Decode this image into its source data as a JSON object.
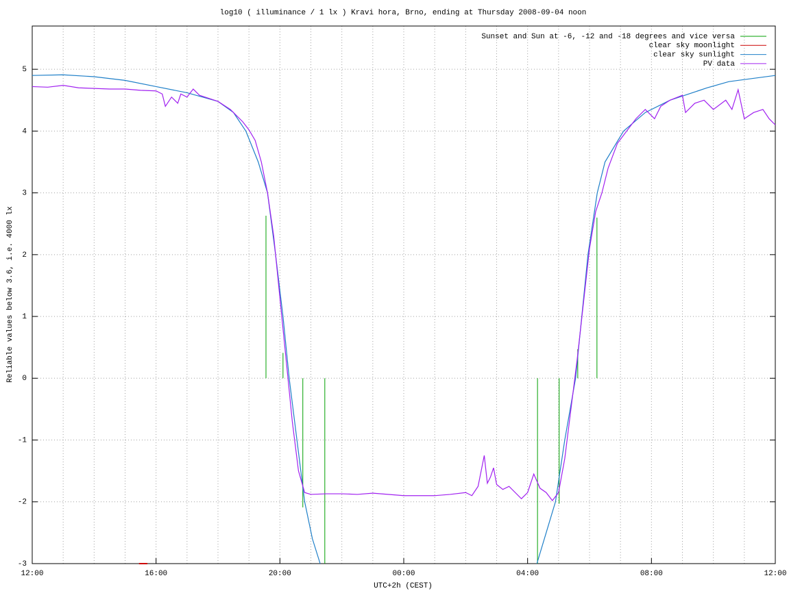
{
  "chart_data": {
    "type": "line",
    "title": "log10 ( illuminance / 1 lx ) Kravi hora, Brno, ending at Thursday 2008-09-04 noon",
    "xlabel": "UTC+2h (CEST)",
    "ylabel": "Reliable values below 3.6, i.e. 4000 lx",
    "xlim": [
      0,
      24
    ],
    "ylim": [
      -3,
      5.7
    ],
    "xticks": [
      {
        "value": 0,
        "label": "12:00"
      },
      {
        "value": 4,
        "label": "16:00"
      },
      {
        "value": 8,
        "label": "20:00"
      },
      {
        "value": 12,
        "label": "00:00"
      },
      {
        "value": 16,
        "label": "04:00"
      },
      {
        "value": 20,
        "label": "08:00"
      },
      {
        "value": 24,
        "label": "12:00"
      }
    ],
    "xminorticks": [
      1,
      2,
      3,
      5,
      6,
      7,
      9,
      10,
      11,
      13,
      14,
      15,
      17,
      18,
      19,
      21,
      22,
      23
    ],
    "yticks": [
      -3,
      -2,
      -1,
      0,
      1,
      2,
      3,
      4,
      5
    ],
    "grid": true,
    "legend": "top-right",
    "series": [
      {
        "name": "Sunset and Sun at -6, -12 and -18 degrees and vice versa",
        "color": "#00a000",
        "style": "impulses",
        "x": [
          7.55,
          8.1,
          8.74,
          9.45,
          16.32,
          17.02,
          17.62,
          18.24
        ],
        "values": [
          2.63,
          0.41,
          -2.09,
          -3,
          -3,
          -2.03,
          0.47,
          2.6
        ]
      },
      {
        "name": "clear sky moonlight",
        "color": "#cc0000",
        "style": "lines",
        "x": [
          3.45,
          3.72
        ],
        "values": [
          -3,
          -3
        ]
      },
      {
        "name": "clear sky sunlight",
        "color": "#1e7fc8",
        "style": "lines",
        "x": [
          0,
          1,
          2,
          3,
          4,
          5,
          6,
          6.5,
          6.9,
          7.3,
          7.6,
          7.86,
          8.1,
          8.3,
          8.55,
          8.8,
          9.05,
          9.3,
          12,
          16.3,
          16.6,
          16.9,
          17.2,
          17.55,
          17.75,
          17.95,
          18.25,
          18.5,
          19.1,
          19.8,
          20.6,
          21.8,
          22.5,
          24
        ],
        "values": [
          4.9,
          4.91,
          4.88,
          4.82,
          4.72,
          4.62,
          4.48,
          4.3,
          4.0,
          3.5,
          3.0,
          2.0,
          1.0,
          0.0,
          -1.0,
          -2.0,
          -2.6,
          -3.0,
          null,
          -3.0,
          -2.5,
          -2.0,
          -1.0,
          0.0,
          1.0,
          2.0,
          3.0,
          3.5,
          4.0,
          4.3,
          4.5,
          4.7,
          4.8,
          4.9
        ]
      },
      {
        "name": "PV data",
        "color": "#a020f0",
        "style": "lines",
        "x": [
          0,
          0.5,
          1,
          1.5,
          2,
          2.5,
          3,
          3.5,
          4,
          4.2,
          4.3,
          4.5,
          4.7,
          4.8,
          5.0,
          5.2,
          5.4,
          6.0,
          6.4,
          6.8,
          7.0,
          7.2,
          7.4,
          7.6,
          7.8,
          8.0,
          8.2,
          8.4,
          8.6,
          8.8,
          9.0,
          9.5,
          10,
          10.5,
          11,
          12,
          13,
          13.5,
          14,
          14.2,
          14.4,
          14.6,
          14.7,
          14.8,
          14.9,
          15.0,
          15.2,
          15.4,
          15.6,
          15.8,
          16.0,
          16.2,
          16.4,
          16.6,
          16.8,
          17.0,
          17.2,
          17.4,
          17.6,
          17.8,
          18.0,
          18.2,
          18.4,
          18.6,
          18.9,
          19.2,
          19.5,
          19.8,
          20.1,
          20.3,
          20.6,
          21.0,
          21.1,
          21.4,
          21.7,
          22.0,
          22.4,
          22.6,
          22.8,
          23.0,
          23.3,
          23.6,
          23.8,
          24
        ],
        "values": [
          4.72,
          4.71,
          4.74,
          4.7,
          4.69,
          4.68,
          4.68,
          4.66,
          4.65,
          4.6,
          4.4,
          4.55,
          4.45,
          4.6,
          4.55,
          4.68,
          4.58,
          4.48,
          4.35,
          4.15,
          4.02,
          3.85,
          3.5,
          3.0,
          2.3,
          1.3,
          0.3,
          -0.7,
          -1.5,
          -1.85,
          -1.88,
          -1.87,
          -1.87,
          -1.88,
          -1.86,
          -1.9,
          -1.9,
          -1.88,
          -1.85,
          -1.9,
          -1.75,
          -1.25,
          -1.7,
          -1.6,
          -1.45,
          -1.72,
          -1.8,
          -1.75,
          -1.85,
          -1.95,
          -1.85,
          -1.55,
          -1.78,
          -1.85,
          -1.98,
          -1.85,
          -1.3,
          -0.5,
          0.3,
          1.2,
          2.1,
          2.7,
          3.0,
          3.4,
          3.8,
          4.0,
          4.2,
          4.35,
          4.2,
          4.4,
          4.5,
          4.58,
          4.3,
          4.45,
          4.5,
          4.35,
          4.5,
          4.35,
          4.67,
          4.2,
          4.3,
          4.35,
          4.2,
          4.1
        ]
      }
    ]
  }
}
